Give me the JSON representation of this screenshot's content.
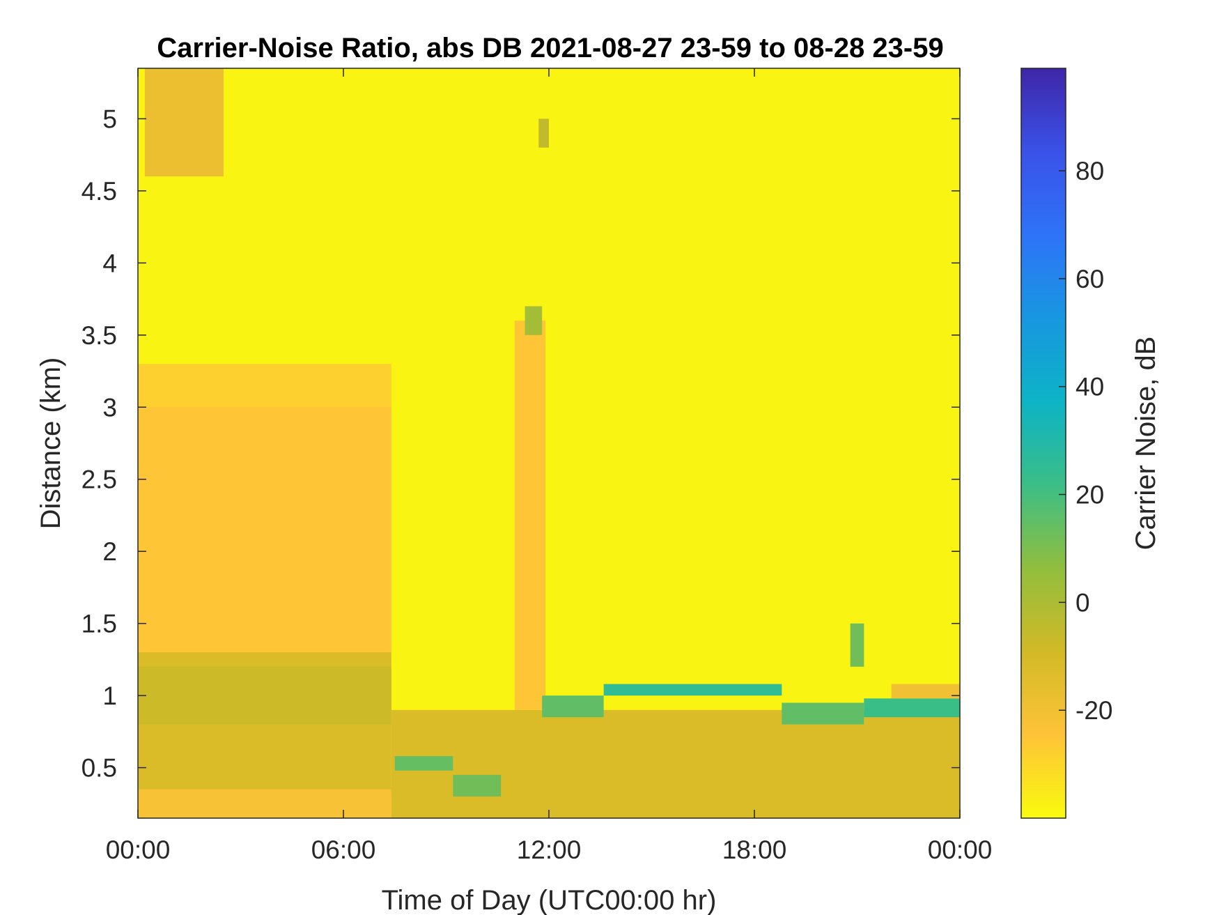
{
  "chart_data": {
    "type": "heatmap",
    "title": "Carrier-Noise Ratio, abs DB 2021-08-27 23-59 to 08-28 23-59",
    "xlabel": "Time of Day (UTC00:00 hr)",
    "ylabel": "Distance (km)",
    "xlim": [
      0,
      24
    ],
    "ylim": [
      0.15,
      5.35
    ],
    "x_ticks": [
      0,
      6,
      12,
      18,
      24
    ],
    "x_tick_labels": [
      "00:00",
      "06:00",
      "12:00",
      "18:00",
      "00:00"
    ],
    "y_ticks": [
      0.5,
      1,
      1.5,
      2,
      2.5,
      3,
      3.5,
      4,
      4.5,
      5
    ],
    "y_tick_labels": [
      "0.5",
      "1",
      "1.5",
      "2",
      "2.5",
      "3",
      "3.5",
      "4",
      "4.5",
      "5"
    ],
    "colorbar": {
      "label": "Carrier Noise, dB",
      "clim": [
        -40,
        99
      ],
      "ticks": [
        -20,
        0,
        20,
        40,
        60,
        80
      ],
      "tick_labels": [
        "-20",
        "0",
        "20",
        "40",
        "60",
        "80"
      ],
      "colormap": [
        "#f9fb0e",
        "#fec338",
        "#d2ba26",
        "#91be3e",
        "#3bbe87",
        "#0db3c6",
        "#1897e0",
        "#2e73f8",
        "#3a52e8",
        "#3e26a8"
      ]
    },
    "regions": [
      {
        "x": [
          0,
          24
        ],
        "y": [
          0.15,
          5.35
        ],
        "value": -38
      },
      {
        "x": [
          0,
          7.4
        ],
        "y": [
          0.15,
          3.3
        ],
        "value": -28
      },
      {
        "x": [
          0,
          7.4
        ],
        "y": [
          1.3,
          3.0
        ],
        "value": -25
      },
      {
        "x": [
          0,
          7.4
        ],
        "y": [
          0.3,
          1.3
        ],
        "value": -12
      },
      {
        "x": [
          0,
          7.4
        ],
        "y": [
          0.8,
          1.2
        ],
        "value": -8
      },
      {
        "x": [
          0,
          7.4
        ],
        "y": [
          0.15,
          0.35
        ],
        "value": -22
      },
      {
        "x": [
          7.4,
          24
        ],
        "y": [
          0.15,
          0.9
        ],
        "value": -12
      },
      {
        "x": [
          7.5,
          9.2
        ],
        "y": [
          0.48,
          0.58
        ],
        "value": 14
      },
      {
        "x": [
          9.2,
          10.6
        ],
        "y": [
          0.3,
          0.45
        ],
        "value": 12
      },
      {
        "x": [
          11.0,
          11.9
        ],
        "y": [
          0.9,
          3.6
        ],
        "value": -25
      },
      {
        "x": [
          11.3,
          11.8
        ],
        "y": [
          3.5,
          3.7
        ],
        "value": 2
      },
      {
        "x": [
          11.8,
          13.6
        ],
        "y": [
          0.85,
          1.0
        ],
        "value": 15
      },
      {
        "x": [
          13.6,
          18.8
        ],
        "y": [
          1.0,
          1.08
        ],
        "value": 25
      },
      {
        "x": [
          18.8,
          21.2
        ],
        "y": [
          0.8,
          0.95
        ],
        "value": 15
      },
      {
        "x": [
          21.2,
          24
        ],
        "y": [
          0.85,
          0.98
        ],
        "value": 22
      },
      {
        "x": [
          22.0,
          24
        ],
        "y": [
          0.98,
          1.08
        ],
        "value": -20
      },
      {
        "x": [
          20.8,
          21.2
        ],
        "y": [
          1.2,
          1.5
        ],
        "value": 12
      },
      {
        "x": [
          0.2,
          2.5
        ],
        "y": [
          4.6,
          5.35
        ],
        "value": -18
      },
      {
        "x": [
          11.7,
          12.0
        ],
        "y": [
          4.8,
          5.0
        ],
        "value": -5
      }
    ]
  }
}
